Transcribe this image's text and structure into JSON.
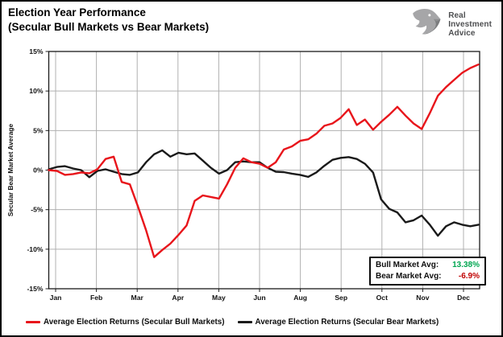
{
  "header": {
    "title_line1": "Election Year Performance",
    "title_line2": "(Secular Bull Markets vs Bear Markets)",
    "logo": {
      "line1": "Real",
      "line2": "Investment",
      "line3": "Advice"
    }
  },
  "chart_data": {
    "type": "line",
    "title": "Election Year Performance (Secular Bull Markets vs Bear Markets)",
    "xlabel": "",
    "ylabel": "Secular Bear Market Average",
    "ylim": [
      -15,
      15
    ],
    "ytick_step": 5,
    "ytick_labels": [
      "15%",
      "10%",
      "5%",
      "0%",
      "-5%",
      "-10%",
      "-15%"
    ],
    "x_categories": [
      "Jan",
      "Feb",
      "Mar",
      "Apr",
      "May",
      "Jun",
      "Aug",
      "Sep",
      "Oct",
      "Nov",
      "Dec"
    ],
    "grid": true,
    "legend_position": "bottom",
    "grid_color": "#b0b0b0",
    "series": [
      {
        "name": "Average Election Returns (Secular Bull Markets)",
        "color": "#e8151b",
        "values": [
          0.0,
          -0.1,
          -0.6,
          -0.5,
          -0.3,
          -0.4,
          0.1,
          1.4,
          1.7,
          -1.5,
          -1.8,
          -4.6,
          -7.6,
          -11.0,
          -10.1,
          -9.3,
          -8.2,
          -7.0,
          -3.9,
          -3.2,
          -3.4,
          -3.6,
          -1.8,
          0.3,
          1.5,
          1.0,
          0.8,
          0.3,
          1.0,
          2.6,
          3.0,
          3.7,
          3.9,
          4.6,
          5.6,
          5.9,
          6.6,
          7.7,
          5.7,
          6.4,
          5.1,
          6.1,
          7.0,
          8.0,
          6.9,
          5.9,
          5.2,
          7.2,
          9.4,
          10.5,
          11.4,
          12.3,
          12.9,
          13.35
        ]
      },
      {
        "name": "Average Election Returns (Secular Bear Markets)",
        "color": "#1a1a1a",
        "values": [
          0.1,
          0.4,
          0.5,
          0.2,
          0.0,
          -0.9,
          -0.1,
          0.1,
          -0.2,
          -0.5,
          -0.6,
          -0.3,
          1.0,
          2.0,
          2.5,
          1.7,
          2.2,
          2.0,
          2.1,
          1.2,
          0.3,
          -0.45,
          0.0,
          1.0,
          1.1,
          1.0,
          1.0,
          0.3,
          -0.2,
          -0.25,
          -0.45,
          -0.6,
          -0.85,
          -0.3,
          0.55,
          1.3,
          1.55,
          1.65,
          1.4,
          0.8,
          -0.3,
          -3.7,
          -4.9,
          -5.35,
          -6.6,
          -6.35,
          -5.75,
          -6.9,
          -8.3,
          -7.1,
          -6.6,
          -6.9,
          -7.1,
          -6.9
        ]
      }
    ],
    "annotation": {
      "lines": [
        {
          "label": "Bull Market Avg:",
          "value": "13.38%",
          "value_color": "#00a651"
        },
        {
          "label": "Bear Market Avg:",
          "value": "-6.9%",
          "value_color": "#c00000"
        }
      ]
    }
  },
  "colors": {
    "bull_line": "#e8151b",
    "bear_line": "#1a1a1a",
    "bull_avg_value": "#00a651",
    "bear_avg_value": "#c00000",
    "gridline": "#b0b0b0"
  }
}
